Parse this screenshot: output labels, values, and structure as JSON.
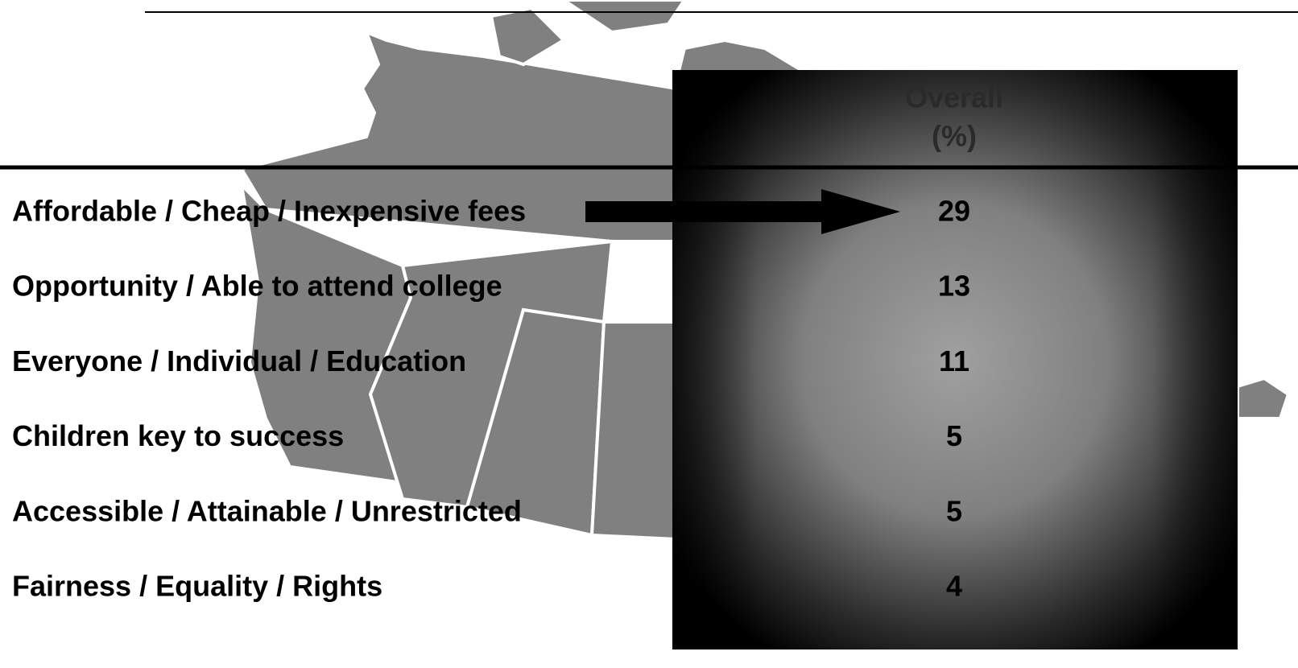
{
  "table": {
    "header": [
      "Overall",
      "(%)"
    ],
    "rows": [
      [
        "Affordable / Cheap / Inexpensive fees",
        29
      ],
      [
        "Opportunity / Able to attend college",
        13
      ],
      [
        "Everyone / Individual / Education",
        11
      ],
      [
        "Children key to success",
        5
      ],
      [
        "Accessible / Attainable / Unrestricted",
        5
      ],
      [
        "Fairness / Equality / Rights",
        4
      ]
    ]
  }
}
